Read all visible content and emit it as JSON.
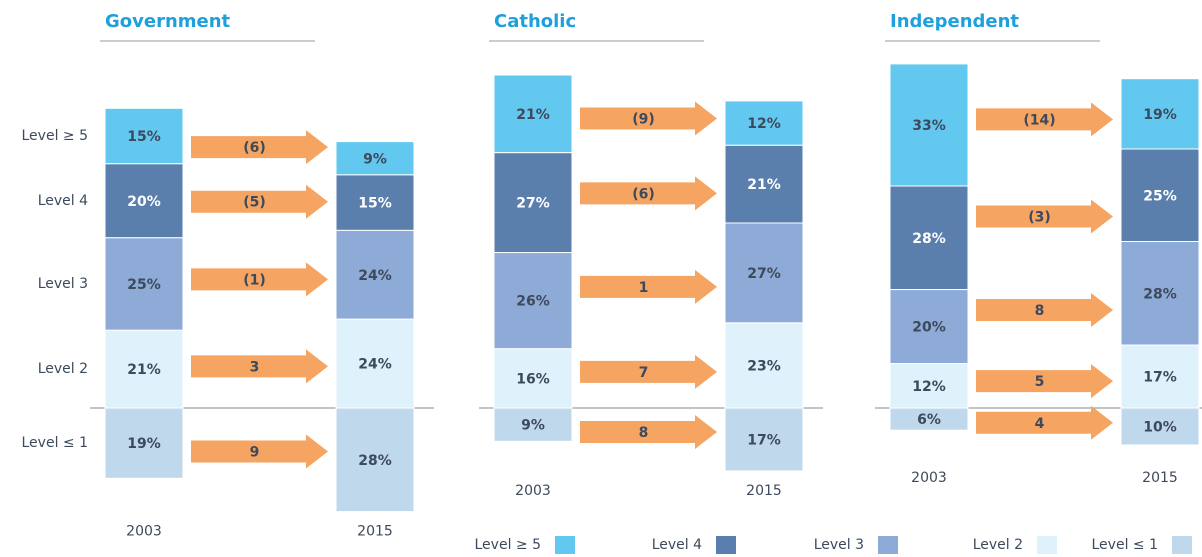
{
  "chart_data": {
    "type": "bar",
    "categories": [
      "2003",
      "2015"
    ],
    "legend_position": "bottom",
    "legend": [
      {
        "name": "Level ≥ 5",
        "color": "#63c8f0"
      },
      {
        "name": "Level 4",
        "color": "#5b7fad"
      },
      {
        "name": "Level 3",
        "color": "#8eaad6"
      },
      {
        "name": "Level 2",
        "color": "#dff1fa"
      },
      {
        "name": "Level ≤ 1",
        "color": "#c0d8ec"
      }
    ],
    "arrow_color": "#f5a462",
    "panels": [
      {
        "title": "Government",
        "series": [
          {
            "values": [
              15,
              9
            ],
            "value_labels": [
              "15%",
              "9%"
            ]
          },
          {
            "values": [
              20,
              15
            ],
            "value_labels": [
              "20%",
              "15%"
            ]
          },
          {
            "values": [
              25,
              24
            ],
            "value_labels": [
              "25%",
              "24%"
            ]
          },
          {
            "values": [
              21,
              24
            ],
            "value_labels": [
              "21%",
              "24%"
            ]
          },
          {
            "values": [
              19,
              28
            ],
            "value_labels": [
              "19%",
              "28%"
            ]
          }
        ],
        "changes": [
          -6,
          -5,
          -1,
          3,
          9
        ],
        "change_labels": [
          "(6)",
          "(5)",
          "(1)",
          "3",
          "9"
        ]
      },
      {
        "title": "Catholic",
        "series": [
          {
            "values": [
              21,
              12
            ],
            "value_labels": [
              "21%",
              "12%"
            ]
          },
          {
            "values": [
              27,
              21
            ],
            "value_labels": [
              "27%",
              "21%"
            ]
          },
          {
            "values": [
              26,
              27
            ],
            "value_labels": [
              "26%",
              "27%"
            ]
          },
          {
            "values": [
              16,
              23
            ],
            "value_labels": [
              "16%",
              "23%"
            ]
          },
          {
            "values": [
              9,
              17
            ],
            "value_labels": [
              "9%",
              "17%"
            ]
          }
        ],
        "changes": [
          -9,
          -6,
          1,
          7,
          8
        ],
        "change_labels": [
          "(9)",
          "(6)",
          "1",
          "7",
          "8"
        ]
      },
      {
        "title": "Independent",
        "series": [
          {
            "values": [
              33,
              19
            ],
            "value_labels": [
              "33%",
              "19%"
            ]
          },
          {
            "values": [
              28,
              25
            ],
            "value_labels": [
              "28%",
              "25%"
            ]
          },
          {
            "values": [
              20,
              28
            ],
            "value_labels": [
              "20%",
              "28%"
            ]
          },
          {
            "values": [
              12,
              17
            ],
            "value_labels": [
              "12%",
              "17%"
            ]
          },
          {
            "values": [
              6,
              10
            ],
            "value_labels": [
              "6%",
              "10%"
            ]
          }
        ],
        "changes": [
          -14,
          -3,
          8,
          5,
          4
        ],
        "change_labels": [
          "(14)",
          "(3)",
          "8",
          "5",
          "4"
        ]
      }
    ]
  }
}
